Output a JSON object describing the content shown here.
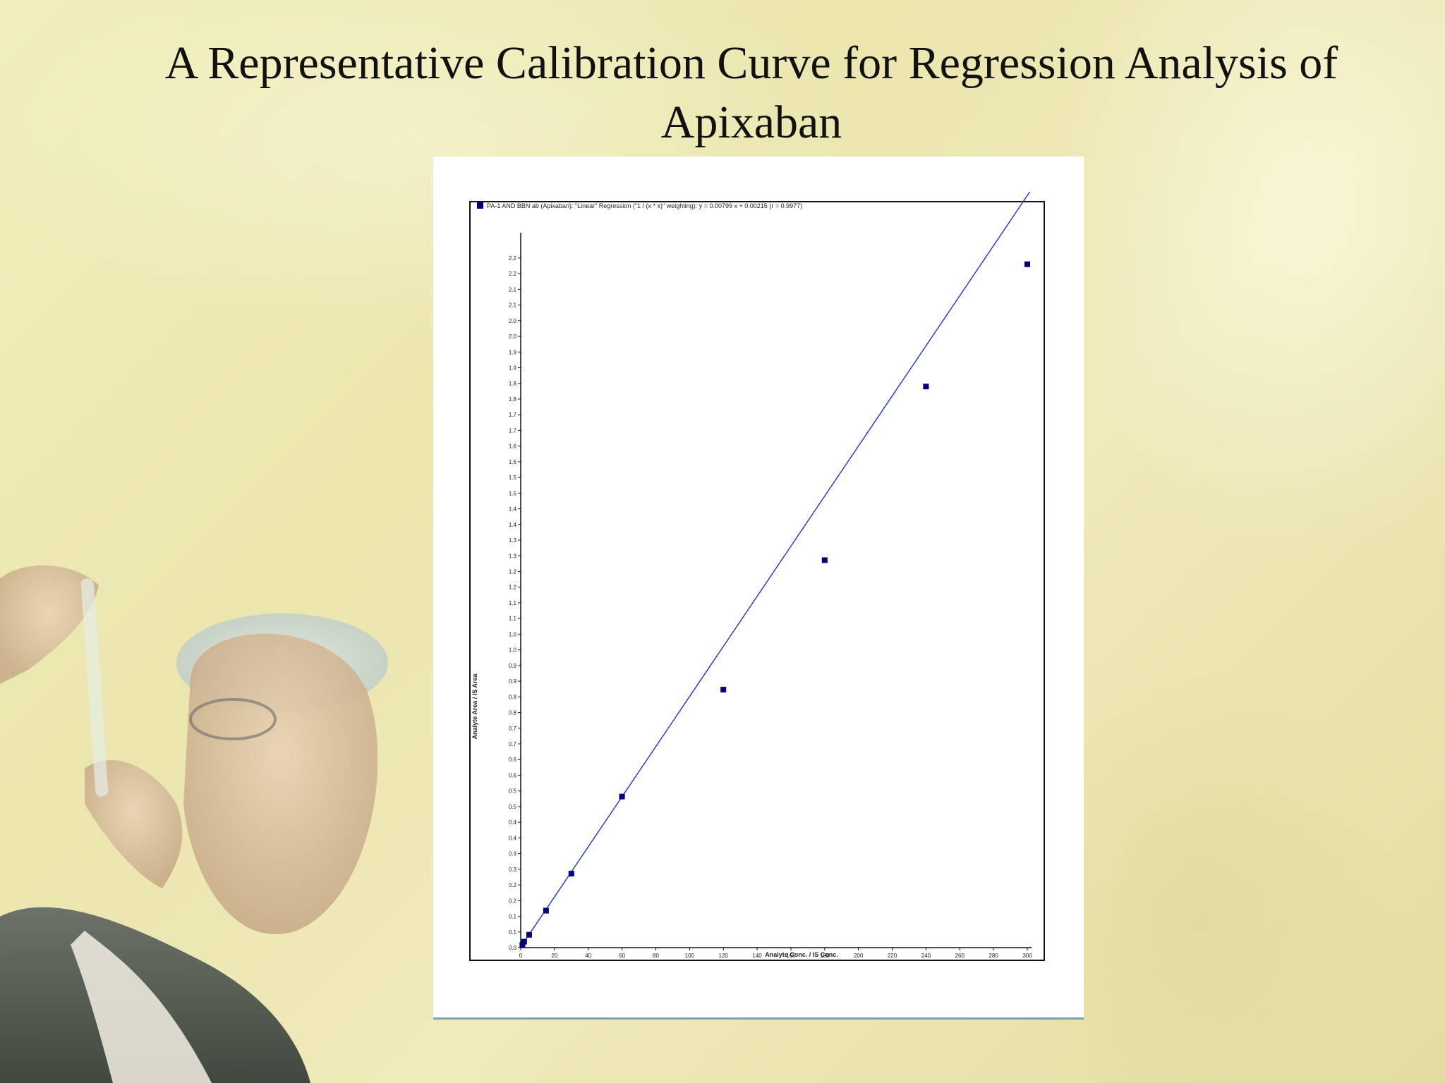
{
  "slide": {
    "title": "A Representative Calibration Curve for Regression Analysis of Apixaban"
  },
  "colors": {
    "background": "#efeaba",
    "series": "#00007a",
    "fit_line": "#2233cc",
    "panel": "#ffffff"
  },
  "chart_data": {
    "type": "scatter",
    "legend": "PA-1 AND BBN ab (Apixaban): \"Linear\" Regression (\"1 / (x * x)\" weighting): y = 0.00799 x + 0.00215 (r = 0.9977)",
    "legend_placement": "top-left",
    "xlabel": "Analyte Conc. / IS Conc.",
    "ylabel": "Analyte Area / IS Area",
    "xlim": [
      0,
      300
    ],
    "ylim": [
      0,
      2.22
    ],
    "x_ticks": [
      "0",
      "20",
      "40",
      "60",
      "80",
      "100",
      "120",
      "140",
      "160",
      "180",
      "200",
      "220",
      "240",
      "260",
      "280",
      "300"
    ],
    "x_tick_values": [
      0,
      20,
      40,
      60,
      80,
      100,
      120,
      140,
      160,
      180,
      200,
      220,
      240,
      260,
      280,
      300
    ],
    "y_ticks": [
      "0.0",
      "0.1",
      "0.1",
      "0.2",
      "0.2",
      "0.3",
      "0.3",
      "0.4",
      "0.4",
      "0.5",
      "0.5",
      "0.6",
      "0.6",
      "0.7",
      "0.7",
      "0.8",
      "0.8",
      "0.9",
      "0.9",
      "1.0",
      "1.0",
      "1.1",
      "1.1",
      "1.2",
      "1.2",
      "1.3",
      "1.3",
      "1.4",
      "1.4",
      "1.5",
      "1.5",
      "1.6",
      "1.6",
      "1.7",
      "1.7",
      "1.8",
      "1.8",
      "1.9",
      "1.9",
      "2.0",
      "2.0",
      "2.1",
      "2.1",
      "2.2",
      "2.2"
    ],
    "y_tick_values": [
      0.0,
      0.05,
      0.1,
      0.15,
      0.2,
      0.25,
      0.3,
      0.35,
      0.4,
      0.45,
      0.5,
      0.55,
      0.6,
      0.65,
      0.7,
      0.75,
      0.8,
      0.85,
      0.9,
      0.95,
      1.0,
      1.05,
      1.1,
      1.15,
      1.2,
      1.25,
      1.3,
      1.35,
      1.4,
      1.45,
      1.5,
      1.55,
      1.6,
      1.65,
      1.7,
      1.75,
      1.8,
      1.85,
      1.9,
      1.95,
      2.0,
      2.05,
      2.1,
      2.15,
      2.2
    ],
    "grid": false,
    "points": [
      {
        "x": 1,
        "y": 0.009
      },
      {
        "x": 2,
        "y": 0.019
      },
      {
        "x": 5,
        "y": 0.041
      },
      {
        "x": 15,
        "y": 0.118
      },
      {
        "x": 30,
        "y": 0.236
      },
      {
        "x": 60,
        "y": 0.482
      },
      {
        "x": 120,
        "y": 0.823
      },
      {
        "x": 180,
        "y": 1.236
      },
      {
        "x": 240,
        "y": 1.79
      },
      {
        "x": 300,
        "y": 2.18
      }
    ],
    "fit": {
      "slope": 0.00799,
      "intercept": 0.00215,
      "x_range": [
        0,
        300
      ]
    }
  }
}
